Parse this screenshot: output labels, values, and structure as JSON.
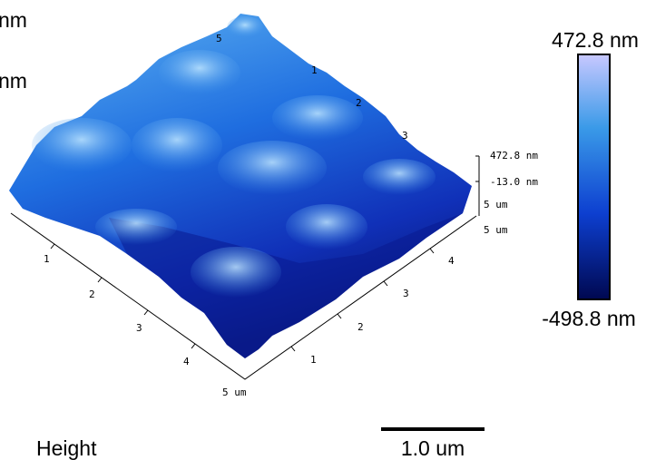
{
  "header_labels": [
    "nm",
    "nm"
  ],
  "colorbar": {
    "max_label": "472.8 nm",
    "min_label": "-498.8 nm"
  },
  "axes": {
    "z_max": "472.8 nm",
    "z_mid": "-13.0 nm",
    "x_end": "5 um",
    "y_end": "5 um",
    "left_ticks": [
      "1",
      "2",
      "3",
      "4"
    ],
    "left_end": "5 um",
    "right_ticks": [
      "1",
      "2",
      "3",
      "4"
    ],
    "back_ticks": [
      "5",
      "1",
      "2",
      "3"
    ]
  },
  "caption": {
    "title": "Height",
    "scale_bar": "1.0 um"
  }
}
